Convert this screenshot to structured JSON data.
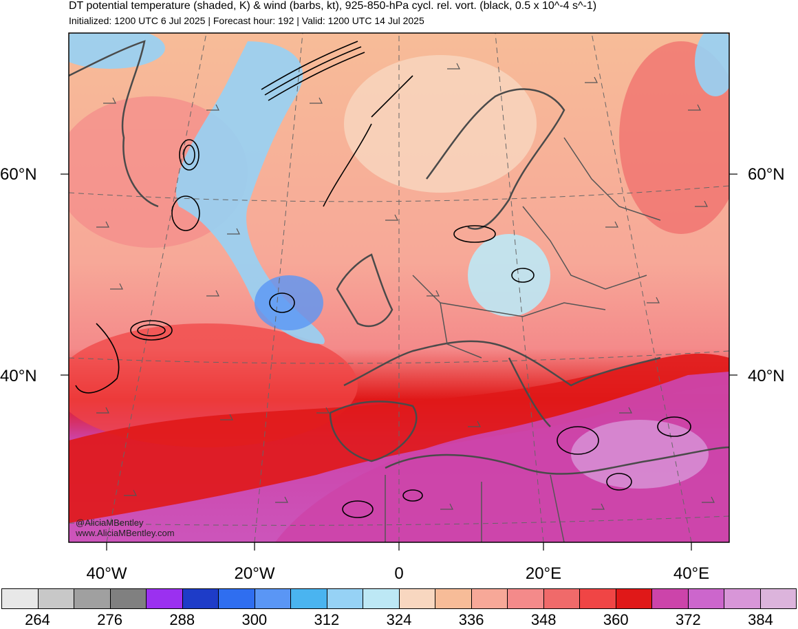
{
  "title": "DT potential temperature (shaded, K) & wind (barbs, kt), 925-850-hPa cycl. rel. vort. (black, 0.5 x 10^-4 s^-1)",
  "subtitle": "Initialized: 1200 UTC 6 Jul 2025 | Forecast hour: 192 | Valid: 1200 UTC 14 Jul 2025",
  "lat_labels": {
    "lat60_left": "60°N",
    "lat60_right": "60°N",
    "lat40_left": "40°N",
    "lat40_right": "40°N"
  },
  "lon_labels": [
    "40°W",
    "20°W",
    "0",
    "20°E",
    "40°E"
  ],
  "watermark": {
    "handle": "@AliciaMBentley",
    "site": "www.AliciaMBentley.com"
  },
  "colorbar": {
    "colors": [
      "#e8e8e8",
      "#c8c8c8",
      "#a0a0a0",
      "#808080",
      "#9b30f0",
      "#1e3cc8",
      "#2f6ef0",
      "#5a96f5",
      "#4ab4f0",
      "#96d2f5",
      "#bde8f5",
      "#f8d7c0",
      "#f7bc98",
      "#f7a898",
      "#f48a8a",
      "#f06a6a",
      "#f04545",
      "#e01818",
      "#cc44aa",
      "#cc66cc",
      "#d896d8",
      "#dcb4dc"
    ],
    "labels": [
      "264",
      "276",
      "288",
      "300",
      "312",
      "324",
      "336",
      "348",
      "360",
      "372",
      "384"
    ]
  }
}
